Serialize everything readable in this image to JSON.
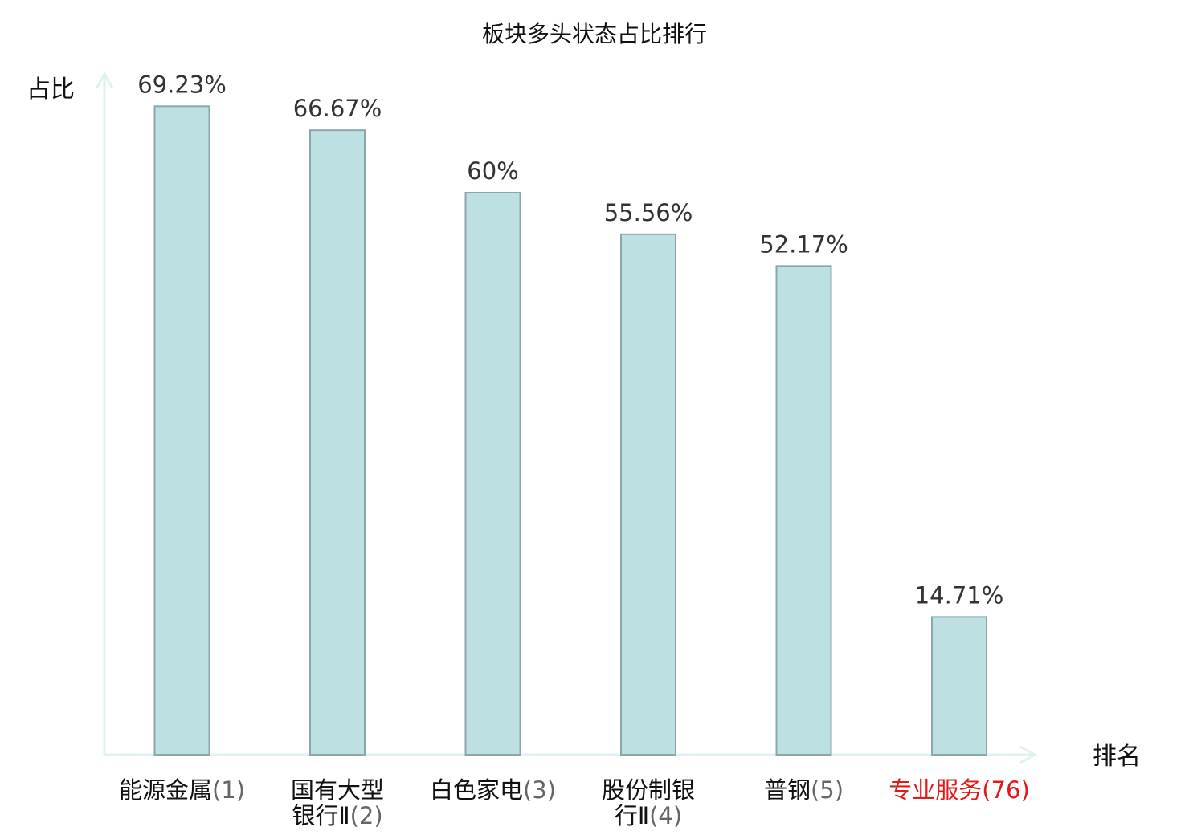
{
  "chart_data": {
    "type": "bar",
    "title": "板块多头状态占比排行",
    "ylabel": "占比",
    "xlabel": "排名",
    "ylim": [
      0,
      72
    ],
    "grid": false,
    "categories": [
      {
        "lines": [
          "能源金属(1)"
        ],
        "name": "能源金属",
        "rank": "(1)",
        "highlight": false
      },
      {
        "lines": [
          "国有大型",
          "银行Ⅱ(2)"
        ],
        "name": "国有大型银行Ⅱ",
        "rank": "(2)",
        "highlight": false
      },
      {
        "lines": [
          "白色家电(3)"
        ],
        "name": "白色家电",
        "rank": "(3)",
        "highlight": false
      },
      {
        "lines": [
          "股份制银",
          "行Ⅱ(4)"
        ],
        "name": "股份制银行Ⅱ",
        "rank": "(4)",
        "highlight": false
      },
      {
        "lines": [
          "普钢(5)"
        ],
        "name": "普钢",
        "rank": "(5)",
        "highlight": false
      },
      {
        "lines": [
          "专业服务(76)"
        ],
        "name": "专业服务",
        "rank": "(76)",
        "highlight": true
      }
    ],
    "values": [
      69.23,
      66.67,
      60,
      55.56,
      52.17,
      14.71
    ],
    "value_labels": [
      "69.23%",
      "66.67%",
      "60%",
      "55.56%",
      "52.17%",
      "14.71%"
    ]
  },
  "colors": {
    "bar_fill": "#bde0e3",
    "bar_stroke": "#8aa8a9",
    "axis": "#dff2ef",
    "text": "#111111",
    "value_text": "#333333",
    "highlight": "#e01b1b"
  }
}
